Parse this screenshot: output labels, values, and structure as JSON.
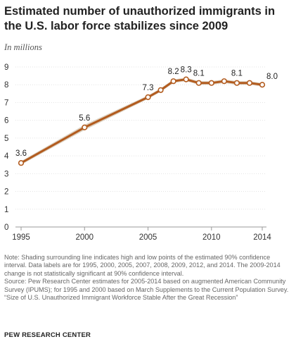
{
  "title": "Estimated number of unauthorized immigrants in the U.S. labor force stabilizes since 2009",
  "subtitle": "In millions",
  "notes": {
    "note": "Note: Shading surrounding line indicates high and low points of the estimated 90% confidence interval. Data labels are for 1995, 2000, 2005, 2007, 2008, 2009, 2012, and 2014. The 2009-2014 change is not statistically significant at 90% confidence interval.",
    "source": "Source: Pew Research Center estimates for 2005-2014 based on augmented American Community Survey (IPUMS); for 1995 and 2000 based on March Supplements to the Current Population Survey.",
    "report": "“Size of U.S. Unauthorized Immigrant Workforce Stable After the Great Recession”"
  },
  "source_org": "PEW RESEARCH CENTER",
  "colors": {
    "line": "#b25b1e",
    "band": "#ddd2c2",
    "grid": "#e3e3e3",
    "axis": "#999999"
  },
  "chart_data": {
    "type": "line",
    "title": "Estimated number of unauthorized immigrants in the U.S. labor force stabilizes since 2009",
    "subtitle": "In millions",
    "x": [
      1995,
      2000,
      2005,
      2006,
      2007,
      2008,
      2009,
      2010,
      2011,
      2012,
      2013,
      2014
    ],
    "values": [
      3.6,
      5.6,
      7.3,
      7.7,
      8.2,
      8.3,
      8.1,
      8.1,
      8.2,
      8.1,
      8.1,
      8.0
    ],
    "band_low": [
      3.5,
      5.45,
      7.2,
      7.6,
      8.1,
      8.2,
      8.0,
      8.0,
      8.1,
      8.0,
      8.0,
      7.9
    ],
    "band_high": [
      3.7,
      5.75,
      7.4,
      7.8,
      8.3,
      8.4,
      8.2,
      8.2,
      8.3,
      8.2,
      8.2,
      8.1
    ],
    "labels": [
      {
        "x": 1995,
        "text": "3.6"
      },
      {
        "x": 2000,
        "text": "5.6"
      },
      {
        "x": 2005,
        "text": "7.3"
      },
      {
        "x": 2007,
        "text": "8.2"
      },
      {
        "x": 2008,
        "text": "8.3"
      },
      {
        "x": 2009,
        "text": "8.1"
      },
      {
        "x": 2012,
        "text": "8.1"
      },
      {
        "x": 2014,
        "text": "8.0"
      }
    ],
    "x_ticks": [
      1995,
      2000,
      2005,
      2010,
      2014
    ],
    "y_ticks": [
      0,
      1,
      2,
      3,
      4,
      5,
      6,
      7,
      8,
      9
    ],
    "xlim": [
      1995,
      2014
    ],
    "ylim": [
      0,
      9
    ],
    "grid": true
  }
}
